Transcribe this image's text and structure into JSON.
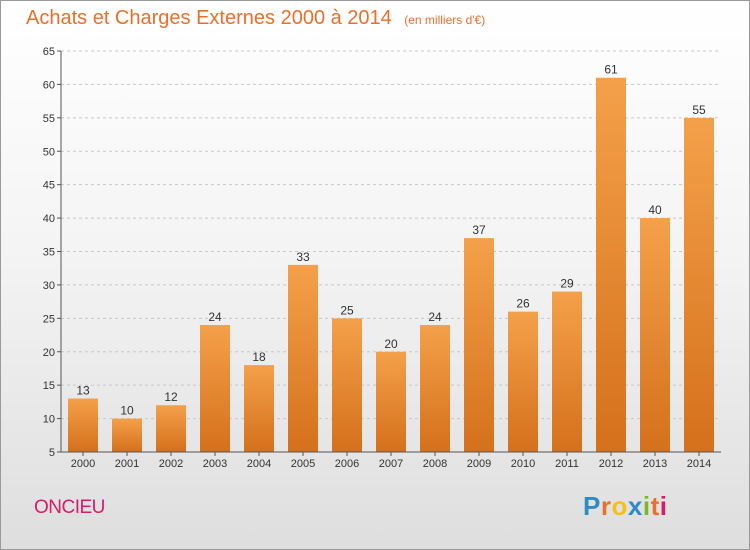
{
  "header": {
    "title": "Achats et Charges Externes 2000 à 2014",
    "subtitle": "(en milliers d'€)"
  },
  "footer": {
    "commune": "ONCIEU",
    "logo": "Proxiti",
    "logo_colors": [
      "#2e8bc9",
      "#e8702a",
      "#f2c21b",
      "#2e8bc9",
      "#7ab829",
      "#e8702a",
      "#d81b6a"
    ]
  },
  "chart_data": {
    "type": "bar",
    "title": "Achats et Charges Externes 2000 à 2014",
    "subtitle": "(en milliers d'€)",
    "xlabel": "",
    "ylabel": "",
    "categories": [
      "2000",
      "2001",
      "2002",
      "2003",
      "2004",
      "2005",
      "2006",
      "2007",
      "2008",
      "2009",
      "2010",
      "2011",
      "2012",
      "2013",
      "2014"
    ],
    "values": [
      13,
      10,
      12,
      24,
      18,
      33,
      25,
      20,
      24,
      37,
      26,
      29,
      61,
      40,
      55
    ],
    "ylim": [
      5,
      65
    ],
    "yticks": [
      5,
      10,
      15,
      20,
      25,
      30,
      35,
      40,
      45,
      50,
      55,
      60,
      65
    ],
    "grid": "horizontal dashed",
    "bar_color": "#f4a04a",
    "bar_color_dark": "#d5701c",
    "data_labels": true
  }
}
